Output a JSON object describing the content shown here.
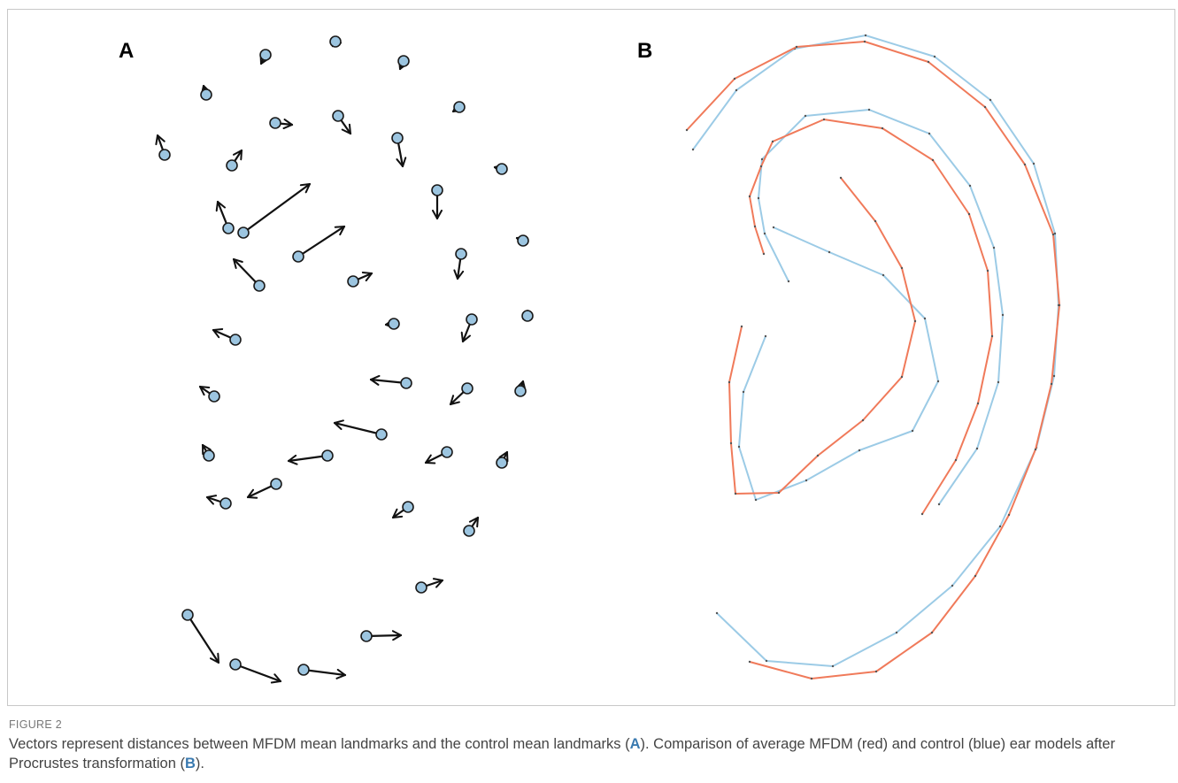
{
  "figure": {
    "panel_a_label": "A",
    "panel_b_label": "B",
    "figure_label": "FIGURE 2",
    "caption": {
      "part1": "Vectors represent distances between MFDM mean landmarks and the control mean landmarks (",
      "ref_a": "A",
      "part2": "). Comparison of average MFDM (red) and control (blue) ear models after Procrustes transformation (",
      "ref_b": "B",
      "part3": ")."
    }
  },
  "colors": {
    "landmark_fill": "#9cc5e0",
    "arrow": "#111111",
    "mfdm_line": "#f07a5a",
    "control_line": "#9ccbe6"
  },
  "icons": {
    "landmark": "circle-marker",
    "vector": "arrow"
  },
  "chart_data": {
    "type": "diagram",
    "panels": [
      {
        "label": "A",
        "kind": "landmark-displacement-vectors",
        "vectors": [
          [
            300,
            62,
            295,
            72
          ],
          [
            379,
            47,
            377,
            42
          ],
          [
            456,
            69,
            452,
            78
          ],
          [
            233,
            107,
            230,
            97
          ],
          [
            519,
            121,
            512,
            126
          ],
          [
            311,
            139,
            330,
            141
          ],
          [
            382,
            131,
            396,
            151
          ],
          [
            449,
            156,
            455,
            188
          ],
          [
            186,
            175,
            178,
            153
          ],
          [
            262,
            187,
            273,
            170
          ],
          [
            567,
            191,
            559,
            189
          ],
          [
            275,
            263,
            350,
            208
          ],
          [
            494,
            215,
            494,
            247
          ],
          [
            258,
            258,
            246,
            228
          ],
          [
            337,
            290,
            389,
            256
          ],
          [
            591,
            272,
            584,
            269
          ],
          [
            521,
            287,
            517,
            315
          ],
          [
            293,
            323,
            264,
            293
          ],
          [
            399,
            318,
            420,
            309
          ],
          [
            445,
            366,
            436,
            367
          ],
          [
            533,
            361,
            523,
            386
          ],
          [
            596,
            357,
            591,
            360
          ],
          [
            266,
            384,
            241,
            373
          ],
          [
            459,
            433,
            419,
            429
          ],
          [
            528,
            439,
            509,
            457
          ],
          [
            588,
            442,
            591,
            431
          ],
          [
            242,
            448,
            226,
            437
          ],
          [
            431,
            491,
            378,
            478
          ],
          [
            236,
            515,
            229,
            503
          ],
          [
            370,
            515,
            326,
            521
          ],
          [
            505,
            511,
            481,
            523
          ],
          [
            567,
            523,
            573,
            511
          ],
          [
            312,
            547,
            280,
            562
          ],
          [
            255,
            569,
            234,
            562
          ],
          [
            461,
            573,
            444,
            585
          ],
          [
            530,
            600,
            540,
            585
          ],
          [
            476,
            664,
            500,
            656
          ],
          [
            212,
            695,
            247,
            749
          ],
          [
            266,
            751,
            317,
            770
          ],
          [
            343,
            757,
            390,
            763
          ],
          [
            414,
            719,
            453,
            718
          ]
        ]
      },
      {
        "label": "B",
        "kind": "ear-outline-comparison",
        "series": [
          {
            "name": "MFDM",
            "color": "red",
            "curves": [
              [
                [
                  776,
                  147
                ],
                [
                  830,
                  89
                ],
                [
                  900,
                  53
                ],
                [
                  977,
                  47
                ],
                [
                  1049,
                  70
                ],
                [
                  1113,
                  121
                ],
                [
                  1158,
                  186
                ],
                [
                  1190,
                  265
                ],
                [
                  1197,
                  345
                ],
                [
                  1188,
                  434
                ],
                [
                  1170,
                  508
                ],
                [
                  1140,
                  582
                ],
                [
                  1102,
                  651
                ],
                [
                  1053,
                  715
                ],
                [
                  990,
                  759
                ],
                [
                  917,
                  767
                ],
                [
                  847,
                  748
                ]
              ],
              [
                [
                  863,
                  287
                ],
                [
                  853,
                  256
                ],
                [
                  847,
                  222
                ],
                [
                  860,
                  188
                ],
                [
                  873,
                  160
                ],
                [
                  931,
                  135
                ],
                [
                  997,
                  145
                ],
                [
                  1054,
                  181
                ],
                [
                  1095,
                  242
                ],
                [
                  1116,
                  306
                ],
                [
                  1121,
                  380
                ],
                [
                  1105,
                  456
                ],
                [
                  1080,
                  520
                ],
                [
                  1042,
                  581
                ]
              ],
              [
                [
                  950,
                  201
                ],
                [
                  989,
                  250
                ],
                [
                  1019,
                  303
                ],
                [
                  1034,
                  363
                ],
                [
                  1019,
                  426
                ],
                [
                  975,
                  475
                ],
                [
                  924,
                  515
                ],
                [
                  880,
                  557
                ],
                [
                  831,
                  558
                ],
                [
                  826,
                  501
                ],
                [
                  824,
                  432
                ],
                [
                  838,
                  369
                ]
              ]
            ]
          },
          {
            "name": "Control",
            "color": "blue",
            "curves": [
              [
                [
                  783,
                  169
                ],
                [
                  832,
                  102
                ],
                [
                  898,
                  55
                ],
                [
                  978,
                  40
                ],
                [
                  1056,
                  64
                ],
                [
                  1119,
                  113
                ],
                [
                  1168,
                  185
                ],
                [
                  1192,
                  264
                ],
                [
                  1196,
                  345
                ],
                [
                  1191,
                  425
                ],
                [
                  1171,
                  506
                ],
                [
                  1130,
                  595
                ],
                [
                  1076,
                  662
                ],
                [
                  1013,
                  715
                ],
                [
                  941,
                  753
                ],
                [
                  866,
                  747
                ],
                [
                  810,
                  693
                ]
              ],
              [
                [
                  891,
                  318
                ],
                [
                  864,
                  264
                ],
                [
                  857,
                  224
                ],
                [
                  861,
                  180
                ],
                [
                  910,
                  131
                ],
                [
                  982,
                  124
                ],
                [
                  1050,
                  151
                ],
                [
                  1096,
                  210
                ],
                [
                  1123,
                  280
                ],
                [
                  1133,
                  356
                ],
                [
                  1128,
                  432
                ],
                [
                  1104,
                  507
                ],
                [
                  1061,
                  570
                ]
              ],
              [
                [
                  874,
                  257
                ],
                [
                  937,
                  285
                ],
                [
                  998,
                  311
                ],
                [
                  1045,
                  360
                ],
                [
                  1060,
                  431
                ],
                [
                  1031,
                  487
                ],
                [
                  971,
                  509
                ],
                [
                  911,
                  543
                ],
                [
                  854,
                  565
                ],
                [
                  835,
                  505
                ],
                [
                  840,
                  443
                ],
                [
                  865,
                  380
                ]
              ]
            ]
          }
        ]
      }
    ]
  }
}
